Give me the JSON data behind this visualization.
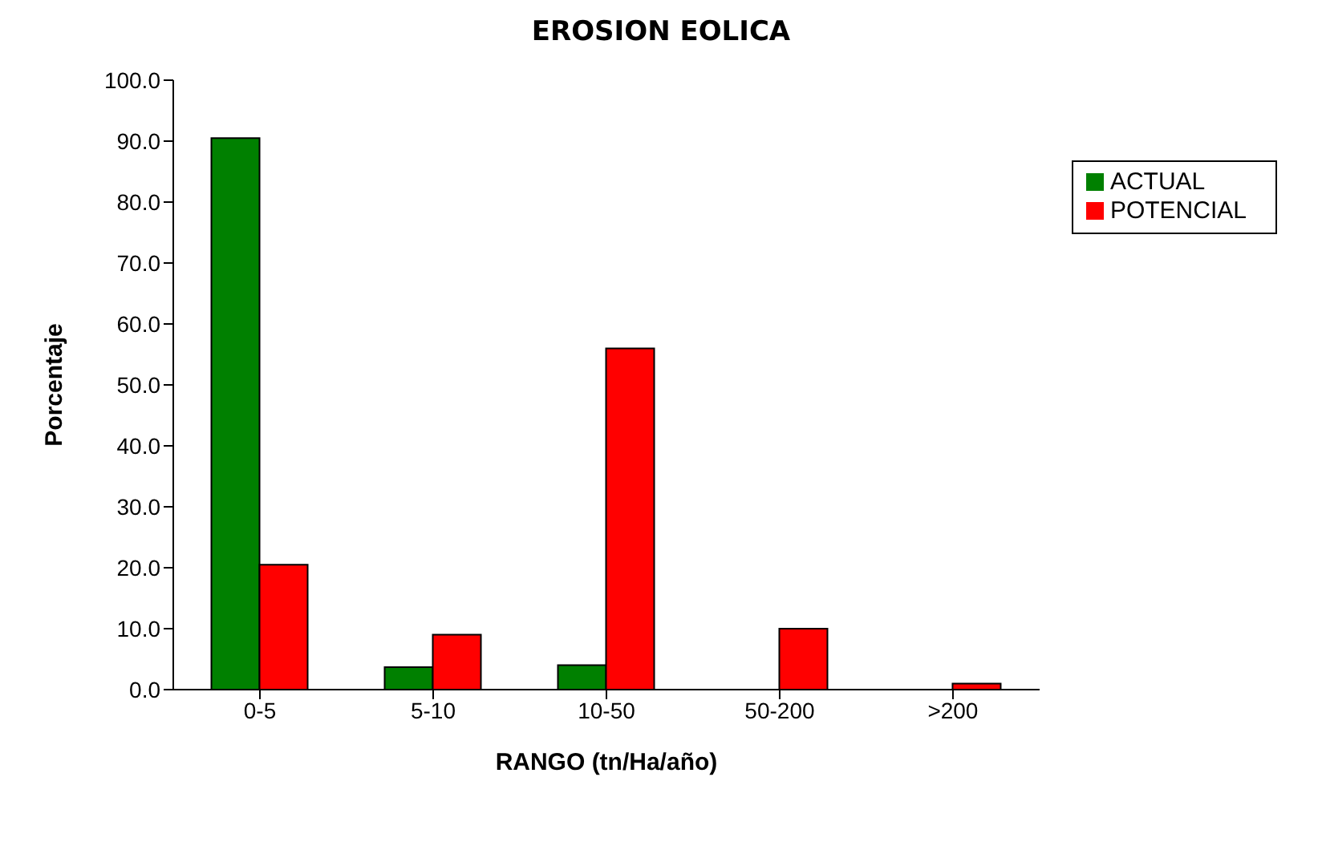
{
  "chart_data": {
    "type": "bar",
    "title": "EROSION EOLICA",
    "xlabel": "RANGO  (tn/Ha/año)",
    "ylabel": "Porcentaje",
    "categories": [
      "0-5",
      "5-10",
      "10-50",
      "50-200",
      ">200"
    ],
    "series": [
      {
        "name": "ACTUAL",
        "color": "#008000",
        "values": [
          90.5,
          3.7,
          4,
          0,
          0
        ]
      },
      {
        "name": "POTENCIAL",
        "color": "#ff0000",
        "values": [
          20.5,
          9,
          56,
          10,
          1
        ]
      }
    ],
    "ylim": [
      0,
      100
    ],
    "yticks": [
      {
        "value": 0,
        "label": "0.0"
      },
      {
        "value": 10,
        "label": "10.0"
      },
      {
        "value": 20,
        "label": "20.0"
      },
      {
        "value": 30,
        "label": "30.0"
      },
      {
        "value": 40,
        "label": "40.0"
      },
      {
        "value": 50,
        "label": "50.0"
      },
      {
        "value": 60,
        "label": "60.0"
      },
      {
        "value": 70,
        "label": "70.0"
      },
      {
        "value": 80,
        "label": "80.0"
      },
      {
        "value": 90,
        "label": "90.0"
      },
      {
        "value": 100,
        "label": "100.0"
      }
    ],
    "grid": false,
    "legend": "top right"
  }
}
